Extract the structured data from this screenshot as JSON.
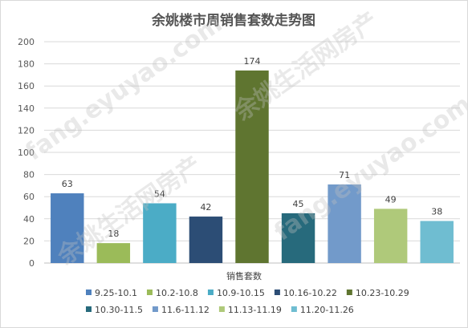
{
  "chart_data": {
    "type": "bar",
    "title": "余姚楼市周销售套数走势图",
    "xlabel": "销售套数",
    "ylabel": "",
    "ylim": [
      0,
      200
    ],
    "yticks": [
      0,
      20,
      40,
      60,
      80,
      100,
      120,
      140,
      160,
      180,
      200
    ],
    "grid": true,
    "legend_position": "bottom",
    "series": [
      {
        "name": "9.25-10.1",
        "value": 63,
        "color": "#4f81bd"
      },
      {
        "name": "10.2-10.8",
        "value": 18,
        "color": "#9bbb59"
      },
      {
        "name": "10.9-10.15",
        "value": 54,
        "color": "#4bacc6"
      },
      {
        "name": "10.16-10.22",
        "value": 42,
        "color": "#2c4d75"
      },
      {
        "name": "10.23-10.29",
        "value": 174,
        "color": "#5f7530"
      },
      {
        "name": "10.30-11.5",
        "value": 45,
        "color": "#276a7c"
      },
      {
        "name": "11.6-11.12",
        "value": 71,
        "color": "#729aca"
      },
      {
        "name": "11.13-11.19",
        "value": 49,
        "color": "#afc97a"
      },
      {
        "name": "11.20-11.26",
        "value": 38,
        "color": "#6fbdd1"
      }
    ]
  },
  "watermarks": [
    "fang.eyuyao.com",
    "余姚生活网房产"
  ]
}
